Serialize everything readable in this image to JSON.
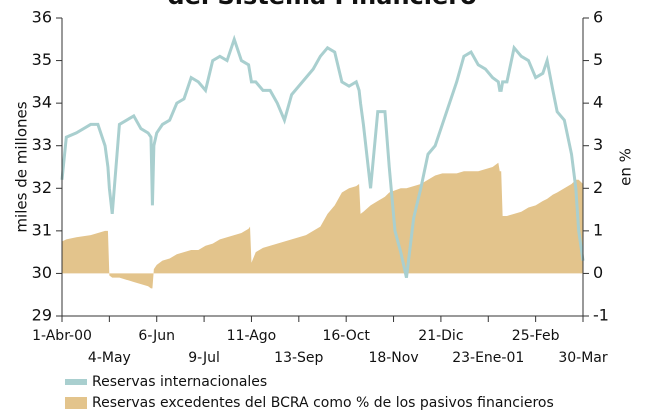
{
  "chart_data": {
    "type": "line",
    "title": "del Sistema Financiero",
    "y_label": "miles de millones",
    "y2_label": "en %",
    "x": [
      0,
      3,
      10,
      20,
      25,
      30,
      32,
      33,
      35,
      40,
      45,
      50,
      55,
      60,
      62,
      63,
      64,
      66,
      70,
      75,
      80,
      85,
      90,
      95,
      100,
      105,
      110,
      115,
      120,
      125,
      130,
      131,
      132,
      135,
      140,
      145,
      150,
      155,
      160,
      165,
      170,
      175,
      180,
      185,
      190,
      195,
      200,
      205,
      207,
      208,
      210,
      215,
      220,
      225,
      228,
      232,
      236,
      240,
      245,
      250,
      255,
      260,
      265,
      270,
      275,
      280,
      285,
      290,
      295,
      300,
      304,
      305,
      306,
      307,
      310,
      315,
      320,
      325,
      330,
      335,
      338,
      342,
      345,
      350,
      355,
      358,
      360,
      363
    ],
    "xlim": [
      0,
      363
    ],
    "xticks": [
      {
        "value": 0,
        "label": "1-Abr-00"
      },
      {
        "value": 33,
        "label": "4-May"
      },
      {
        "value": 66,
        "label": "6-Jun"
      },
      {
        "value": 99,
        "label": "9-Jul"
      },
      {
        "value": 132,
        "label": "11-Ago"
      },
      {
        "value": 165,
        "label": "13-Sep"
      },
      {
        "value": 198,
        "label": "16-Oct"
      },
      {
        "value": 231,
        "label": "18-Nov"
      },
      {
        "value": 264,
        "label": "21-Dic"
      },
      {
        "value": 297,
        "label": "23-Ene-01"
      },
      {
        "value": 330,
        "label": "25-Feb"
      },
      {
        "value": 363,
        "label": "30-Mar"
      }
    ],
    "ylim": [
      29,
      36
    ],
    "yticks": [
      29,
      30,
      31,
      32,
      33,
      34,
      35,
      36
    ],
    "y2lim": [
      -1,
      6
    ],
    "y2ticks": [
      -1,
      0,
      1,
      2,
      3,
      4,
      5,
      6
    ],
    "series": [
      {
        "name": "Reservas internacionales",
        "color": "#a9cfcf",
        "type": "line",
        "values": [
          32.2,
          33.2,
          33.3,
          33.5,
          33.5,
          33.0,
          32.5,
          32.0,
          31.4,
          33.5,
          33.6,
          33.7,
          33.4,
          33.3,
          33.2,
          31.6,
          33.0,
          33.3,
          33.5,
          33.6,
          34.0,
          34.1,
          34.6,
          34.5,
          34.3,
          35.0,
          35.1,
          35.0,
          35.5,
          35.0,
          34.9,
          34.7,
          34.5,
          34.5,
          34.3,
          34.3,
          34.0,
          33.6,
          34.2,
          34.4,
          34.6,
          34.8,
          35.1,
          35.3,
          35.2,
          34.5,
          34.4,
          34.5,
          34.3,
          34.0,
          33.5,
          32.0,
          33.8,
          33.8,
          32.5,
          31.0,
          30.5,
          29.9,
          31.3,
          32.0,
          32.8,
          33.0,
          33.5,
          34.0,
          34.5,
          35.1,
          35.2,
          34.9,
          34.8,
          34.6,
          34.5,
          34.3,
          34.3,
          34.5,
          34.5,
          35.3,
          35.1,
          35.0,
          34.6,
          34.7,
          35.0,
          34.3,
          33.8,
          33.6,
          32.8,
          32.0,
          31.0,
          30.3
        ]
      },
      {
        "name": "Reservas excedentes del BCRA como % de los pasivos financieros",
        "color": "#e3c48c",
        "type": "area",
        "axis": "y2",
        "values": [
          0.75,
          0.8,
          0.85,
          0.9,
          0.95,
          1.0,
          1.0,
          -0.05,
          -0.1,
          -0.1,
          -0.15,
          -0.2,
          -0.25,
          -0.3,
          -0.35,
          -0.35,
          0.1,
          0.2,
          0.3,
          0.35,
          0.45,
          0.5,
          0.55,
          0.55,
          0.65,
          0.7,
          0.8,
          0.85,
          0.9,
          0.95,
          1.05,
          1.1,
          0.25,
          0.5,
          0.6,
          0.65,
          0.7,
          0.75,
          0.8,
          0.85,
          0.9,
          1.0,
          1.1,
          1.4,
          1.6,
          1.9,
          2.0,
          2.05,
          2.1,
          1.4,
          1.45,
          1.6,
          1.7,
          1.8,
          1.9,
          1.95,
          2.0,
          2.0,
          2.05,
          2.1,
          2.2,
          2.3,
          2.35,
          2.35,
          2.35,
          2.4,
          2.4,
          2.4,
          2.45,
          2.5,
          2.6,
          2.4,
          2.4,
          1.35,
          1.35,
          1.4,
          1.45,
          1.55,
          1.6,
          1.7,
          1.75,
          1.85,
          1.9,
          2.0,
          2.1,
          2.2,
          2.2,
          2.1
        ]
      }
    ]
  }
}
